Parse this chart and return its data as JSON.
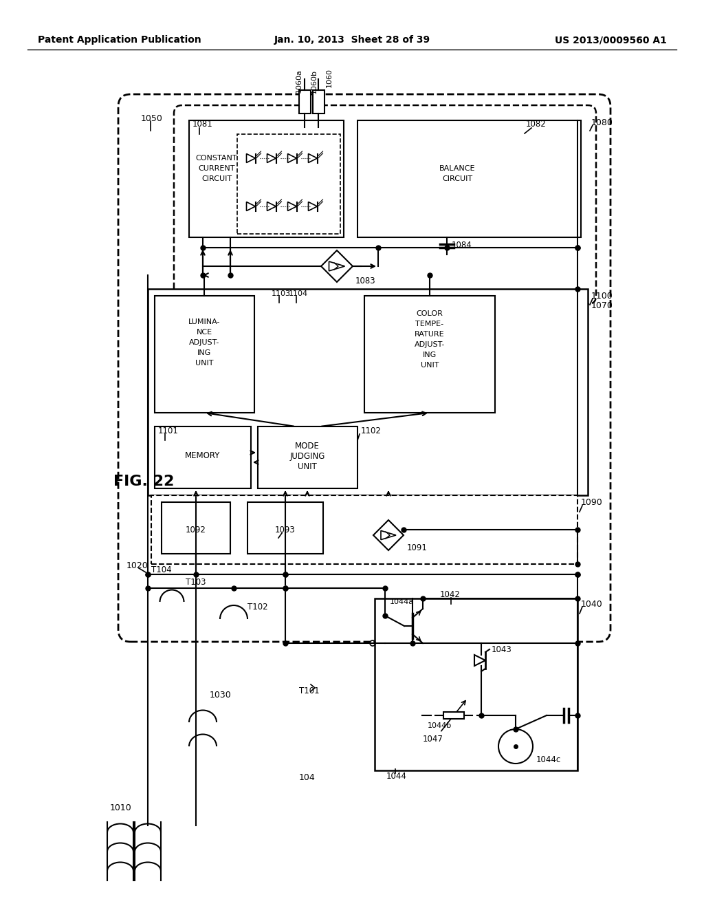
{
  "title_left": "Patent Application Publication",
  "title_center": "Jan. 10, 2013  Sheet 28 of 39",
  "title_right": "US 2013/0009560 A1",
  "fig_label": "FIG. 22",
  "background": "#ffffff"
}
